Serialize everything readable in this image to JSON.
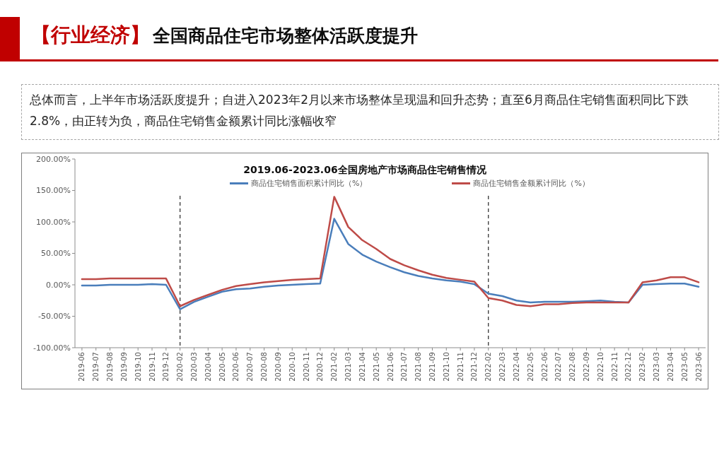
{
  "chart_data": {
    "type": "line",
    "title": "【行业经济】全国商品住宅市场整体活跃度提升",
    "subtitle": "2019.06-2023.06全国房地产市场商品住宅销售情况",
    "annotations": [
      "总体而言，上半年市场活跃度提升；自进入2023年2月以来市场整体呈现温和回升态势；直至6月商品住宅销售面积同比下跌2.8%，由正转为负，商品住宅销售金额累计同比涨幅收窄"
    ],
    "categories": [
      "2019-06",
      "2019-07",
      "2019-08",
      "2019-09",
      "2019-10",
      "2019-11",
      "2019-12",
      "2020-02",
      "2020-03",
      "2020-04",
      "2020-05",
      "2020-06",
      "2020-07",
      "2020-08",
      "2020-09",
      "2020-10",
      "2020-11",
      "2020-12",
      "2021-02",
      "2021-03",
      "2021-04",
      "2021-05",
      "2021-06",
      "2021-07",
      "2021-08",
      "2021-09",
      "2021-10",
      "2021-11",
      "2021-12",
      "2022-02",
      "2022-03",
      "2022-04",
      "2022-05",
      "2022-06",
      "2022-07",
      "2022-08",
      "2022-09",
      "2022-10",
      "2022-11",
      "2022-12",
      "2023-02",
      "2023-03",
      "2023-04",
      "2023-05",
      "2023-06"
    ],
    "series": [
      {
        "name": "商品住宅销售面积累计同比（%）",
        "color": "#4a7ebb",
        "values": [
          -1,
          -1,
          0,
          0,
          0,
          1,
          0,
          -39,
          -27,
          -19,
          -11,
          -7,
          -6,
          -3,
          -1,
          0,
          1,
          2,
          105,
          65,
          48,
          37,
          28,
          20,
          14,
          10,
          7,
          5,
          1,
          -14,
          -18,
          -25,
          -28,
          -27,
          -27,
          -27,
          -26,
          -25,
          -27,
          -28,
          0,
          1,
          2,
          2,
          -3
        ]
      },
      {
        "name": "商品住宅销售金额累计同比（%）",
        "color": "#be4b48",
        "values": [
          9,
          9,
          10,
          10,
          10,
          10,
          10,
          -34,
          -24,
          -16,
          -8,
          -2,
          1,
          4,
          6,
          8,
          9,
          10,
          140,
          92,
          71,
          57,
          41,
          31,
          23,
          16,
          11,
          8,
          5,
          -21,
          -25,
          -32,
          -34,
          -31,
          -31,
          -29,
          -28,
          -28,
          -28,
          -28,
          4,
          7,
          12,
          12,
          4
        ]
      }
    ],
    "ylim": [
      -100,
      200
    ],
    "yticks": [
      {
        "value": -100,
        "label": "-100.00%"
      },
      {
        "value": -50,
        "label": "-50.00%"
      },
      {
        "value": 0,
        "label": "0.00%"
      },
      {
        "value": 50,
        "label": "50.00%"
      },
      {
        "value": 100,
        "label": "100.00%"
      },
      {
        "value": 150,
        "label": "150.00%"
      },
      {
        "value": 200,
        "label": "200.00%"
      }
    ],
    "ref_lines": [
      {
        "axis": "x",
        "value": "2020-02",
        "color": "#262626",
        "line_style": "dashed"
      },
      {
        "axis": "x",
        "value": "2022-02",
        "color": "#262626",
        "line_style": "dashed"
      }
    ],
    "legend": "top"
  }
}
